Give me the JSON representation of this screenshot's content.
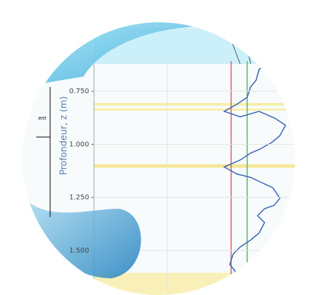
{
  "chart_data": {
    "type": "line",
    "ylabel": "Profondeur, z (m)",
    "note": "ent",
    "ylim": [
      0.32,
      1.71
    ],
    "yticks": [
      {
        "value": 0.75,
        "label": "0.750"
      },
      {
        "value": 1.0,
        "label": "1.000"
      },
      {
        "value": 1.25,
        "label": "1.250"
      },
      {
        "value": 1.5,
        "label": "1.500"
      }
    ],
    "grid": true
  }
}
